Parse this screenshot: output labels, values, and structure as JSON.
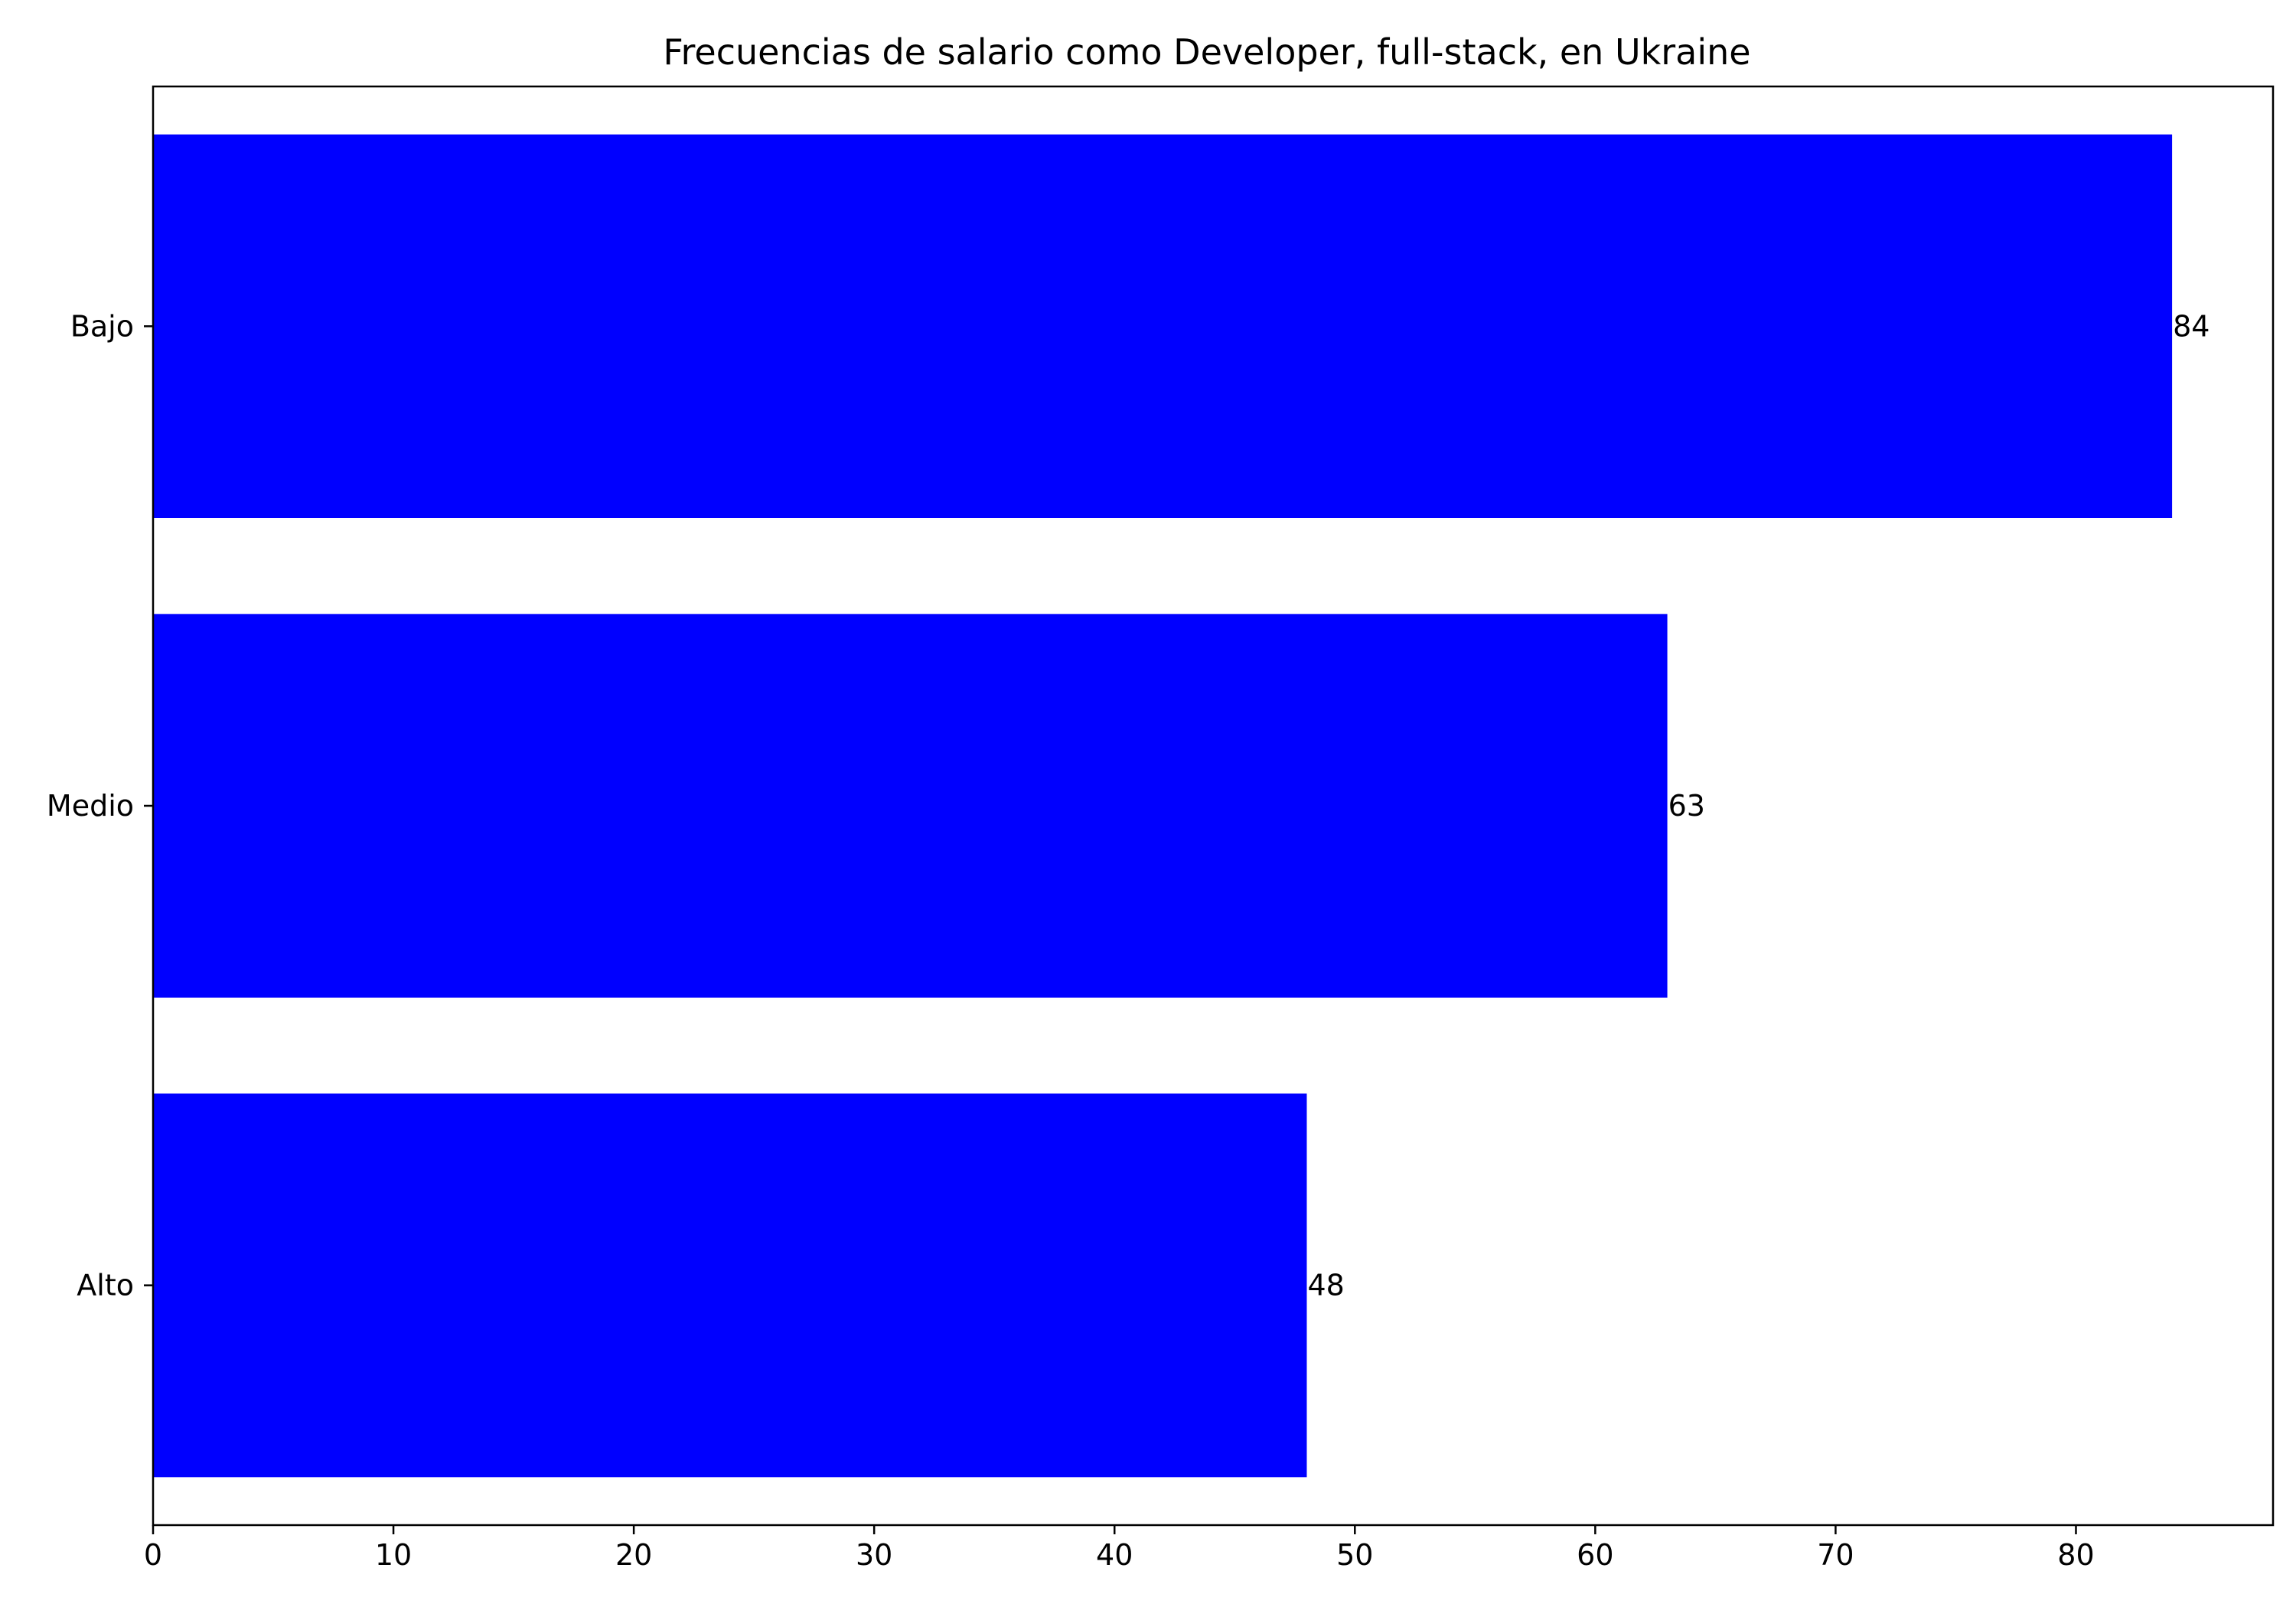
{
  "chart_data": {
    "type": "bar",
    "orientation": "horizontal",
    "title": "Frecuencias de salario como Developer, full-stack, en Ukraine",
    "xlabel": "",
    "ylabel": "",
    "categories": [
      "Bajo",
      "Medio",
      "Alto"
    ],
    "values": [
      84,
      63,
      48
    ],
    "data_labels": [
      "84",
      "63",
      "48"
    ],
    "xlim": [
      0,
      88.2
    ],
    "xticks": [
      0,
      10,
      20,
      30,
      40,
      50,
      60,
      70,
      80
    ],
    "bar_color": "#0000ff",
    "grid": false,
    "legend": "none"
  }
}
